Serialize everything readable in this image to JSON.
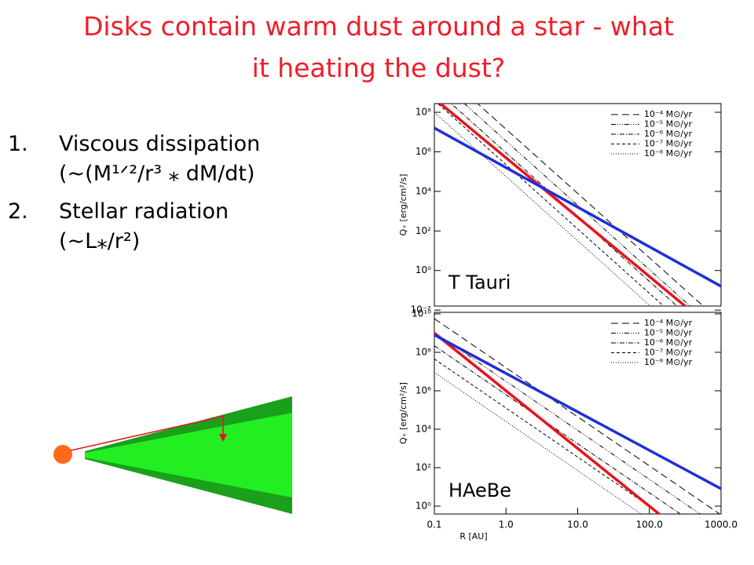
{
  "slide": {
    "title": [
      "Disks contain warm dust around a star - what",
      "it heating the dust?"
    ],
    "items": [
      {
        "number": "1.",
        "lines": [
          "Viscous dissipation",
          "(~(M¹ᐟ²/r³ ⁎ dM/dt)"
        ]
      },
      {
        "number": "2.",
        "lines": [
          "Stellar radiation",
          "(~L⁎/r²)"
        ]
      }
    ]
  },
  "chart_data": [
    {
      "type": "line",
      "annotation": "T Tauri",
      "ylabel": "Q₊ [erg/cm²/s]",
      "log_x": true,
      "log_y": true,
      "legend": "upper right",
      "x": [
        0.1,
        1000
      ],
      "xlim": [
        0.1,
        1000
      ],
      "ylim": [
        0.016,
        275000000
      ],
      "yticks": [
        {
          "value": 0.01,
          "label": "10⁻²"
        },
        {
          "value": 1,
          "label": "10⁰"
        },
        {
          "value": 100,
          "label": "10²"
        },
        {
          "value": 10000,
          "label": "10⁴"
        },
        {
          "value": 1000000,
          "label": "10⁶"
        },
        {
          "value": 100000000,
          "label": "10⁸"
        }
      ],
      "series": [
        {
          "name": "10⁻⁴ M⊙/yr",
          "color": "#000000",
          "dash": "9,5",
          "values": [
            25000000000,
            0.0025
          ]
        },
        {
          "name": "10⁻⁵ M⊙/yr",
          "color": "#000000",
          "dash": "6,2,1,2,1,2,1,2",
          "values": [
            6300000000,
            0.00063
          ]
        },
        {
          "name": "10⁻⁶ M⊙/yr",
          "color": "#000000",
          "dash": "6,2,1,2",
          "values": [
            1600000000,
            0.00016
          ]
        },
        {
          "name": "10⁻⁷ M⊙/yr",
          "color": "#000000",
          "dash": "4,3",
          "values": [
            400000000,
            4e-05
          ]
        },
        {
          "name": "10⁻⁸ M⊙/yr",
          "color": "#000000",
          "dash": "1,2",
          "values": [
            100000000,
            1e-05
          ]
        },
        {
          "color": "#e8141c",
          "values": [
            500000000,
            0.0005
          ]
        },
        {
          "color": "#1f2fd6",
          "values": [
            16000000,
            0.16
          ]
        }
      ]
    },
    {
      "type": "line",
      "annotation": "HAeBe",
      "xlabel": "R [AU]",
      "ylabel": "Q₊ [erg/cm²/s]",
      "log_x": true,
      "log_y": true,
      "legend": "upper right",
      "x": [
        0.1,
        1000
      ],
      "xlim": [
        0.1,
        1000
      ],
      "ylim": [
        0.39,
        12000000000
      ],
      "xticks": [
        0.1,
        {
          "value": 1,
          "label": "1.0"
        },
        {
          "value": 10,
          "label": "10.0"
        },
        {
          "value": 100,
          "label": "100.0"
        },
        {
          "value": 1000,
          "label": "1000.0"
        }
      ],
      "yticks": [
        {
          "value": 1,
          "label": "10⁰"
        },
        {
          "value": 100,
          "label": "10²"
        },
        {
          "value": 10000,
          "label": "10⁴"
        },
        {
          "value": 1000000,
          "label": "10⁶"
        },
        {
          "value": 100000000,
          "label": "10⁸"
        },
        {
          "value": 10000000000,
          "label": "10¹⁰"
        }
      ],
      "series": [
        {
          "name": "10⁻⁴ M⊙/yr",
          "color": "#000000",
          "dash": "9,5",
          "values": [
            5600000000,
            0.35
          ]
        },
        {
          "name": "10⁻⁵ M⊙/yr",
          "color": "#000000",
          "dash": "6,2,1,2,1,2,1,2",
          "values": [
            1100000000,
            0.07
          ]
        },
        {
          "name": "10⁻⁶ M⊙/yr",
          "color": "#000000",
          "dash": "6,2,1,2",
          "values": [
            220000000,
            0.014
          ]
        },
        {
          "name": "10⁻⁷ M⊙/yr",
          "color": "#000000",
          "dash": "4,3",
          "values": [
            45000000,
            0.0028
          ]
        },
        {
          "name": "10⁻⁸ M⊙/yr",
          "color": "#000000",
          "dash": "1,2",
          "values": [
            9000000,
            0.00056
          ]
        },
        {
          "color": "#e8141c",
          "values": [
            1000000000,
            0.001
          ]
        },
        {
          "color": "#1f2fd6",
          "values": [
            800000000,
            8
          ]
        }
      ]
    }
  ]
}
